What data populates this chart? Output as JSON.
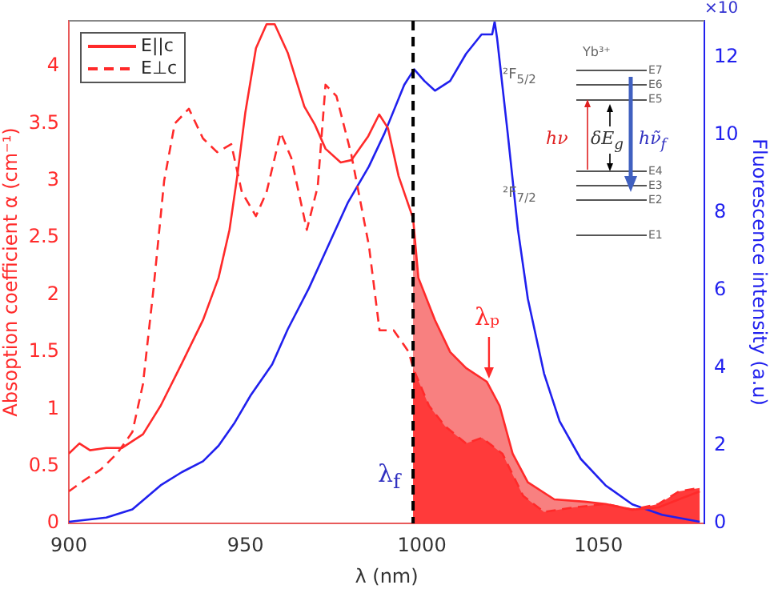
{
  "chart_data": {
    "type": "line",
    "xlabel": "λ (nm)",
    "ylabel": "Absoption coefficient α (cm⁻¹)",
    "y2label": "Fluorescence intensity (a.u)",
    "xlim": [
      900,
      1080
    ],
    "xticks": [
      900,
      950,
      1000,
      1050
    ],
    "ylim": [
      0,
      4.4
    ],
    "yticks": [
      0,
      0.5,
      1,
      1.5,
      2,
      2.5,
      3,
      3.5,
      4
    ],
    "y2lim": [
      0,
      12.95
    ],
    "y2ticks": [
      0,
      2,
      4,
      6,
      8,
      10,
      12
    ],
    "legend": "top left",
    "series": [
      {
        "name": "E||c",
        "color": "#ff2a2a",
        "line_style": "solid",
        "x": [
          900,
          903,
          906,
          910.6,
          915,
          921,
          926,
          932,
          938,
          942.4,
          945.5,
          947.7,
          950,
          953,
          956,
          958.3,
          962,
          966.7,
          969.7,
          972.7,
          977,
          980,
          984.8,
          987.9,
          990.4,
          993.4,
          997.5,
          999,
          1003.7,
          1008,
          1012.5,
          1018.4,
          1022,
          1025.7,
          1030,
          1037.5,
          1046,
          1052,
          1059.6,
          1067,
          1072.8,
          1078.7
        ],
        "values": [
          0.61,
          0.7,
          0.64,
          0.66,
          0.66,
          0.78,
          1.03,
          1.4,
          1.78,
          2.15,
          2.57,
          3.04,
          3.6,
          4.16,
          4.37,
          4.37,
          4.12,
          3.65,
          3.49,
          3.28,
          3.16,
          3.18,
          3.39,
          3.58,
          3.46,
          3.04,
          2.67,
          2.15,
          1.78,
          1.5,
          1.36,
          1.24,
          1.03,
          0.61,
          0.36,
          0.21,
          0.19,
          0.17,
          0.12,
          0.14,
          0.21,
          0.28
        ]
      },
      {
        "name": "E⊥c",
        "color": "#ff2a2a",
        "line_style": "dashed",
        "x": [
          900,
          904.5,
          909,
          913.6,
          918,
          921,
          924,
          927,
          930,
          934,
          938,
          942,
          946,
          949,
          953,
          956,
          960,
          963,
          967.4,
          970.5,
          972.7,
          975.8,
          980,
          985,
          988,
          992,
          996.3,
          997.5,
          1002,
          1006.6,
          1012.5,
          1017,
          1022.8,
          1028.7,
          1034.6,
          1043,
          1052,
          1059.6,
          1067,
          1072.8,
          1078.7
        ],
        "values": [
          0.28,
          0.38,
          0.47,
          0.61,
          0.8,
          1.22,
          2.06,
          3.0,
          3.5,
          3.63,
          3.37,
          3.25,
          3.32,
          2.9,
          2.69,
          2.9,
          3.42,
          3.2,
          2.57,
          2.95,
          3.84,
          3.74,
          3.23,
          2.43,
          1.69,
          1.69,
          1.5,
          1.36,
          1.03,
          0.85,
          0.7,
          0.75,
          0.61,
          0.24,
          0.1,
          0.14,
          0.17,
          0.12,
          0.17,
          0.28,
          0.31
        ]
      },
      {
        "color": "#2020ee",
        "axis": "y2",
        "line_style": "solid",
        "x": [
          900,
          910.6,
          918,
          926,
          932,
          938,
          942.4,
          947,
          951.5,
          957.6,
          962,
          968,
          972.7,
          979,
          985,
          989.4,
          995,
          997.8,
          1000.7,
          1003.7,
          1008,
          1012.5,
          1016.9,
          1019.9,
          1020.6,
          1021.3,
          1024.3,
          1027.2,
          1030,
          1034.6,
          1039,
          1045,
          1052,
          1059.6,
          1068,
          1078.7
        ],
        "values": [
          0.04,
          0.15,
          0.36,
          0.98,
          1.32,
          1.6,
          2.0,
          2.6,
          3.3,
          4.1,
          5.0,
          6.06,
          7.0,
          8.26,
          9.2,
          10.05,
          11.3,
          11.7,
          11.4,
          11.15,
          11.4,
          12.1,
          12.6,
          12.6,
          12.93,
          12.5,
          10.05,
          7.57,
          5.79,
          3.86,
          2.63,
          1.66,
          0.98,
          0.49,
          0.22,
          0.04
        ]
      },
      {
        "type": "area",
        "color": "#ff3a3a",
        "x": [
          997.5,
          1002,
          1006.6,
          1012.5,
          1017,
          1022.8,
          1028.7,
          1034.6,
          1043,
          1052,
          1059.6,
          1067,
          1072.8,
          1078.7
        ],
        "values": [
          1.36,
          1.03,
          0.85,
          0.7,
          0.75,
          0.61,
          0.24,
          0.1,
          0.14,
          0.17,
          0.12,
          0.17,
          0.28,
          0.31
        ]
      },
      {
        "type": "area",
        "color": "#f88080",
        "x": [
          997.5,
          999,
          1003.7,
          1008,
          1012.5,
          1018.4,
          1022,
          1025.7,
          1030,
          1037.5,
          1046,
          1052,
          1059.6
        ],
        "values": [
          2.67,
          2.15,
          1.78,
          1.5,
          1.36,
          1.24,
          1.03,
          0.61,
          0.36,
          0.21,
          0.19,
          0.17,
          0.12
        ]
      }
    ],
    "ref_lines": [
      {
        "axis": "x",
        "value": 997.5,
        "label": "λ$_{f}$",
        "color": "#000000",
        "line_style": "dashed"
      }
    ],
    "annotations": [
      "×10",
      "Yb³⁺",
      "²F$_{5/2}$",
      "²F$_{7/2}$",
      "E7",
      "E6",
      "E5",
      "E4",
      "E3",
      "E2",
      "E1",
      "hν",
      "δE$_{g}$",
      "hν̃$_{f}$",
      {
        "text": "λₚ",
        "x": 1019,
        "y": 1.24
      }
    ]
  }
}
